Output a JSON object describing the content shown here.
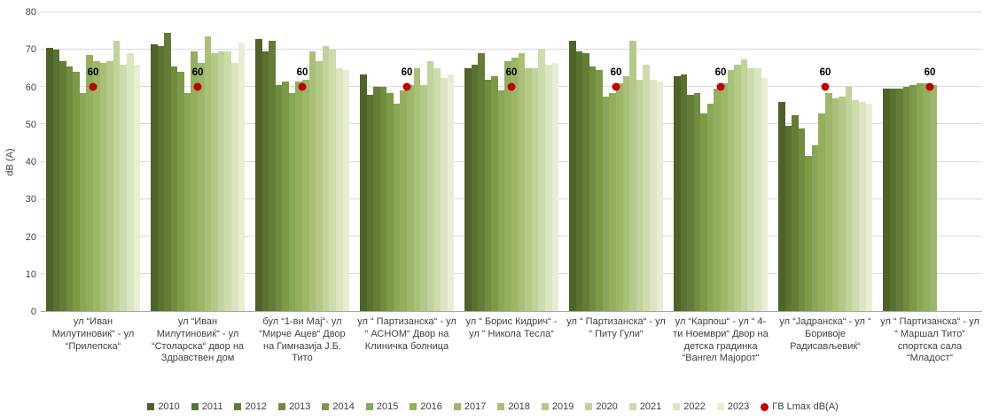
{
  "chart_data": {
    "type": "bar",
    "title": "",
    "ylabel": "dB (A)",
    "ylim": [
      0,
      80
    ],
    "ytick_step": 10,
    "yticks": [
      0,
      10,
      20,
      30,
      40,
      50,
      60,
      70,
      80
    ],
    "grid": true,
    "legend_position": "bottom",
    "categories": [
      "ул “Иван Милутиновиќ“ - ул “Прилепска“",
      "ул “Иван Милутиновиќ“ - ул “Столарска“ двор на Здравствен дом",
      "бул “1-ви Мај“- ул “Мирче Ацев“ Двор на Гимназија Ј.Б. Тито",
      "ул “ Партизанска“ - ул “ АСНОМ“ Двор на Клиничка болница",
      "ул “ Борис Кидрич“ - ул “ Никола Тесла“",
      "ул “ Партизанска“ - ул “ Питу Гули“",
      "ул “Карпош“ - ул “ 4-ти Ноември“ Двор на детска градинка “Вангел Мајорот“",
      "ул “Јадранска“ - ул “ Боривоје Радисављевиќ“",
      "ул “ Партизанска“ - ул “ Маршал Тито“ спортска сала “Младост“"
    ],
    "series": [
      {
        "name": "2010",
        "color": "#4f6228",
        "values": [
          70.5,
          71.5,
          73,
          63.5,
          65,
          72.5,
          63,
          56,
          59.5
        ]
      },
      {
        "name": "2011",
        "color": "#5a7230",
        "values": [
          70,
          71,
          69.5,
          58,
          66,
          69.5,
          63.5,
          49.5,
          59.5
        ]
      },
      {
        "name": "2012",
        "color": "#647d36",
        "values": [
          67,
          74.5,
          72.5,
          60,
          69,
          69,
          58,
          52.5,
          59.5
        ]
      },
      {
        "name": "2013",
        "color": "#708c3e",
        "values": [
          65.5,
          65.5,
          60.5,
          60,
          62,
          65.5,
          58.5,
          49,
          60
        ]
      },
      {
        "name": "2014",
        "color": "#7c9a45",
        "values": [
          64,
          64,
          61.5,
          58.5,
          63,
          64.5,
          53,
          41.5,
          60.5
        ]
      },
      {
        "name": "2015",
        "color": "#89a855",
        "values": [
          58.5,
          58.5,
          58.5,
          55.5,
          59,
          57.5,
          55.5,
          44.5,
          61
        ]
      },
      {
        "name": "2016",
        "color": "#93af5d",
        "values": [
          68.5,
          69.5,
          61.5,
          59,
          67,
          58.5,
          59.5,
          53,
          61
        ]
      },
      {
        "name": "2017",
        "color": "#9db768",
        "values": [
          67,
          66.5,
          62,
          60.5,
          68,
          61,
          61,
          58.5,
          60.5
        ]
      },
      {
        "name": "2018",
        "color": "#a9c077",
        "values": [
          66.5,
          73.5,
          69.5,
          65,
          69,
          63,
          64.5,
          57,
          null
        ]
      },
      {
        "name": "2019",
        "color": "#b4c987",
        "values": [
          67,
          69,
          67,
          60.5,
          65,
          72.5,
          66,
          57.5,
          null
        ]
      },
      {
        "name": "2020",
        "color": "#c1d29a",
        "values": [
          72.5,
          69.5,
          71,
          67,
          65,
          62,
          67.5,
          60,
          null
        ]
      },
      {
        "name": "2021",
        "color": "#cddcab",
        "values": [
          66,
          69.5,
          70,
          65,
          70,
          66,
          65,
          56.5,
          null
        ]
      },
      {
        "name": "2022",
        "color": "#dbe5c0",
        "values": [
          69,
          66.5,
          65,
          62.5,
          66,
          62,
          65,
          56,
          null
        ]
      },
      {
        "name": "2023",
        "color": "#e7eed3",
        "values": [
          66,
          72,
          64.5,
          63.5,
          66.5,
          61.5,
          62.5,
          55.5,
          null
        ]
      }
    ],
    "threshold": {
      "name": "ГВ Lmax dB(A)",
      "value": 60,
      "label": "60",
      "color": "#c00000"
    },
    "colors": {
      "gridline": "#d9d9d9",
      "axis_line": "#a6a6a6",
      "text": "#404040"
    }
  }
}
